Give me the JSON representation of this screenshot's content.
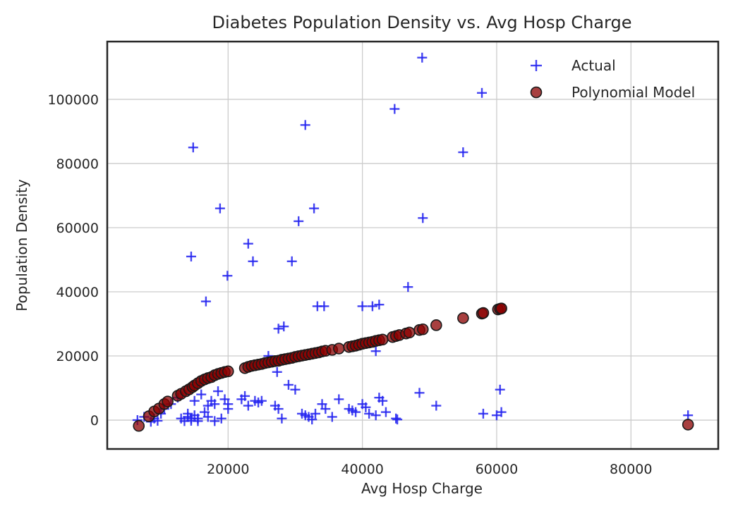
{
  "chart_data": {
    "type": "scatter",
    "title": "Diabetes Population Density vs. Avg Hosp Charge",
    "xlabel": "Avg Hosp Charge",
    "ylabel": "Population Density",
    "xlim": [
      2000,
      93000
    ],
    "ylim": [
      -9000,
      118000
    ],
    "xticks": [
      20000,
      40000,
      60000,
      80000
    ],
    "xtick_labels": [
      "20000",
      "40000",
      "60000",
      "80000"
    ],
    "yticks": [
      0,
      20000,
      40000,
      60000,
      80000,
      100000
    ],
    "ytick_labels": [
      "0",
      "20000",
      "40000",
      "60000",
      "80000",
      "100000"
    ],
    "grid": true,
    "legend_position": "top-right",
    "series": [
      {
        "name": "Actual",
        "marker": "plus",
        "color": "#2424f0",
        "x": [
          6500,
          7500,
          8500,
          9000,
          9500,
          10000,
          10500,
          11500,
          12500,
          13000,
          13500,
          14000,
          14000,
          14500,
          14500,
          15000,
          15000,
          15500,
          15500,
          16000,
          16500,
          17000,
          17000,
          17500,
          18000,
          18000,
          18500,
          19000,
          19500,
          20000,
          20000,
          22000,
          22500,
          23000,
          24000,
          24500,
          25000,
          26000,
          27000,
          27500,
          28000,
          29000,
          30000,
          31000,
          31500,
          32000,
          32500,
          33000,
          34000,
          34500,
          35500,
          36500,
          38000,
          38500,
          39000,
          40000,
          40500,
          41000,
          42000,
          42500,
          43000,
          43500,
          45000,
          45200,
          48500,
          51000,
          58000,
          60000,
          60500,
          60700,
          88500,
          14500,
          14800,
          16700,
          18800,
          19900,
          23000,
          23700,
          27500,
          28300,
          29500,
          30500,
          31500,
          32800,
          33300,
          34300,
          40000,
          41500,
          42500,
          44800,
          46800,
          48900,
          49000,
          55000,
          57800,
          42000,
          27300
        ],
        "y": [
          0,
          1000,
          -500,
          500,
          -200,
          2000,
          3500,
          5000,
          7000,
          500,
          -300,
          2000,
          1000,
          500,
          -200,
          6000,
          1500,
          500,
          -300,
          8000,
          2500,
          4500,
          1000,
          6000,
          5000,
          -300,
          9000,
          500,
          6500,
          5000,
          3500,
          6500,
          7500,
          4500,
          6000,
          5500,
          6000,
          20000,
          4500,
          3500,
          500,
          11000,
          9500,
          2000,
          1500,
          1000,
          200,
          2000,
          5000,
          3500,
          1000,
          6500,
          3500,
          3000,
          2500,
          5000,
          4000,
          2000,
          1500,
          7000,
          6000,
          2500,
          500,
          200,
          8500,
          4500,
          2000,
          1500,
          9500,
          2500,
          1500,
          51000,
          85000,
          37000,
          66000,
          45000,
          55000,
          49500,
          28500,
          29200,
          49500,
          62000,
          92000,
          66000,
          35500,
          35500,
          35500,
          35500,
          36000,
          97000,
          41500,
          113000,
          63000,
          83500,
          102000,
          21500,
          15000
        ]
      },
      {
        "name": "Polynomial Model",
        "marker": "circle",
        "color": "#8b0000",
        "x": [
          6700,
          8200,
          9000,
          9700,
          10500,
          11000,
          12500,
          13000,
          13700,
          14200,
          14700,
          15000,
          15500,
          16000,
          16500,
          17000,
          17500,
          18000,
          18500,
          19000,
          19500,
          20000,
          22500,
          23000,
          23500,
          24000,
          24500,
          25000,
          25500,
          26000,
          26500,
          27000,
          27500,
          28000,
          28500,
          29000,
          29500,
          30000,
          30500,
          31000,
          31500,
          32000,
          32500,
          33000,
          33500,
          34000,
          34500,
          35500,
          36500,
          38000,
          38500,
          39000,
          39500,
          40000,
          40500,
          41000,
          41500,
          42000,
          42500,
          43000,
          44500,
          45000,
          45500,
          46500,
          47000,
          48500,
          49000,
          51000,
          55000,
          57800,
          58000,
          60200,
          60500,
          60700,
          88500
        ],
        "y": [
          -1800,
          1200,
          2700,
          3600,
          5000,
          5800,
          7600,
          8200,
          9000,
          9600,
          10300,
          10800,
          11500,
          12200,
          12700,
          13100,
          13400,
          14000,
          14400,
          14700,
          15000,
          15200,
          16200,
          16600,
          16900,
          17100,
          17300,
          17500,
          17800,
          18000,
          18200,
          18400,
          18500,
          18800,
          19000,
          19200,
          19400,
          19700,
          19900,
          20100,
          20300,
          20500,
          20700,
          20900,
          21100,
          21400,
          21600,
          21900,
          22300,
          22800,
          23000,
          23200,
          23500,
          23800,
          24000,
          24200,
          24400,
          24700,
          24900,
          25100,
          25900,
          26200,
          26500,
          27000,
          27300,
          28100,
          28300,
          29600,
          31800,
          33200,
          33400,
          34500,
          34700,
          34800,
          -1400
        ]
      }
    ]
  }
}
